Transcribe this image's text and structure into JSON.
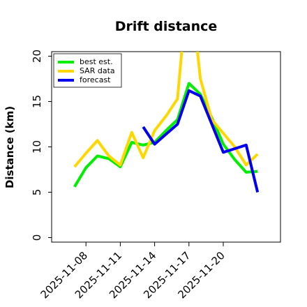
{
  "chart_data": {
    "type": "line",
    "title": "Drift distance",
    "xlabel": "",
    "ylabel": "Distance (km)",
    "ylim": [
      -0.5,
      20.5
    ],
    "xlim": [
      "2025-11-05",
      "2025-11-25"
    ],
    "yticks": [
      0,
      5,
      10,
      15,
      20
    ],
    "xticks": [
      "2025-11-08",
      "2025-11-11",
      "2025-11-14",
      "2025-11-17",
      "2025-11-20"
    ],
    "grid": false,
    "legend_position": "top-left",
    "series": [
      {
        "name": "best est.",
        "color": "#00ee00",
        "x": [
          "2025-11-07",
          "2025-11-08",
          "2025-11-09",
          "2025-11-10",
          "2025-11-11",
          "2025-11-12",
          "2025-11-13",
          "2025-11-14",
          "2025-11-15",
          "2025-11-16",
          "2025-11-17",
          "2025-11-18",
          "2025-11-19",
          "2025-11-20",
          "2025-11-21",
          "2025-11-22",
          "2025-11-23"
        ],
        "y": [
          5.6,
          7.7,
          9.0,
          8.7,
          7.8,
          10.5,
          10.2,
          10.5,
          11.8,
          13.0,
          17.0,
          15.8,
          13.2,
          10.3,
          8.6,
          7.2,
          7.3
        ]
      },
      {
        "name": "SAR data",
        "color": "#ffd700",
        "x": [
          "2025-11-07",
          "2025-11-08",
          "2025-11-09",
          "2025-11-10",
          "2025-11-11",
          "2025-11-12",
          "2025-11-13",
          "2025-11-14",
          "2025-11-15",
          "2025-11-16",
          "2025-11-16.4",
          "2025-11-17.7",
          "2025-11-18",
          "2025-11-19",
          "2025-11-20",
          "2025-11-21",
          "2025-11-22",
          "2025-11-23"
        ],
        "y": [
          7.8,
          9.3,
          10.7,
          9.0,
          8.0,
          11.6,
          8.8,
          11.8,
          13.4,
          15.3,
          21.0,
          21.0,
          17.5,
          13.0,
          11.5,
          10.0,
          8.0,
          9.2
        ]
      },
      {
        "name": "forecast",
        "color": "#0000ee",
        "x": [
          "2025-11-13",
          "2025-11-14",
          "2025-11-15",
          "2025-11-16",
          "2025-11-17",
          "2025-11-18",
          "2025-11-19",
          "2025-11-20",
          "2025-11-21",
          "2025-11-22",
          "2025-11-23"
        ],
        "y": [
          12.2,
          10.3,
          11.4,
          12.5,
          16.2,
          15.6,
          12.5,
          9.4,
          9.8,
          10.2,
          5.0
        ]
      }
    ]
  }
}
